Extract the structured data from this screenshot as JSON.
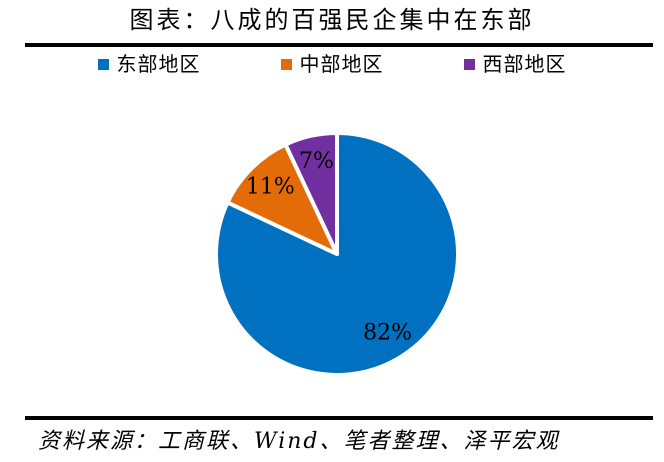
{
  "title": "图表：八成的百强民企集中在东部",
  "source": "资料来源：工商联、Wind、笔者整理、泽平宏观",
  "legend": {
    "items": [
      {
        "label": "东部地区",
        "color": "#0070C0"
      },
      {
        "label": "中部地区",
        "color": "#E36C09"
      },
      {
        "label": "西部地区",
        "color": "#7030A0"
      }
    ]
  },
  "chart_data": {
    "type": "pie",
    "title": "图表：八成的百强民企集中在东部",
    "categories": [
      "东部地区",
      "中部地区",
      "西部地区"
    ],
    "values": [
      82,
      11,
      7
    ],
    "labels": [
      "82%",
      "11%",
      "7%"
    ],
    "colors": [
      "#0070C0",
      "#E36C09",
      "#7030A0"
    ],
    "start_angle_deg": 0,
    "direction": "clockwise",
    "legend_position": "top",
    "slice_separator_color": "#ffffff",
    "source_note": "资料来源：工商联、Wind、笔者整理、泽平宏观"
  }
}
